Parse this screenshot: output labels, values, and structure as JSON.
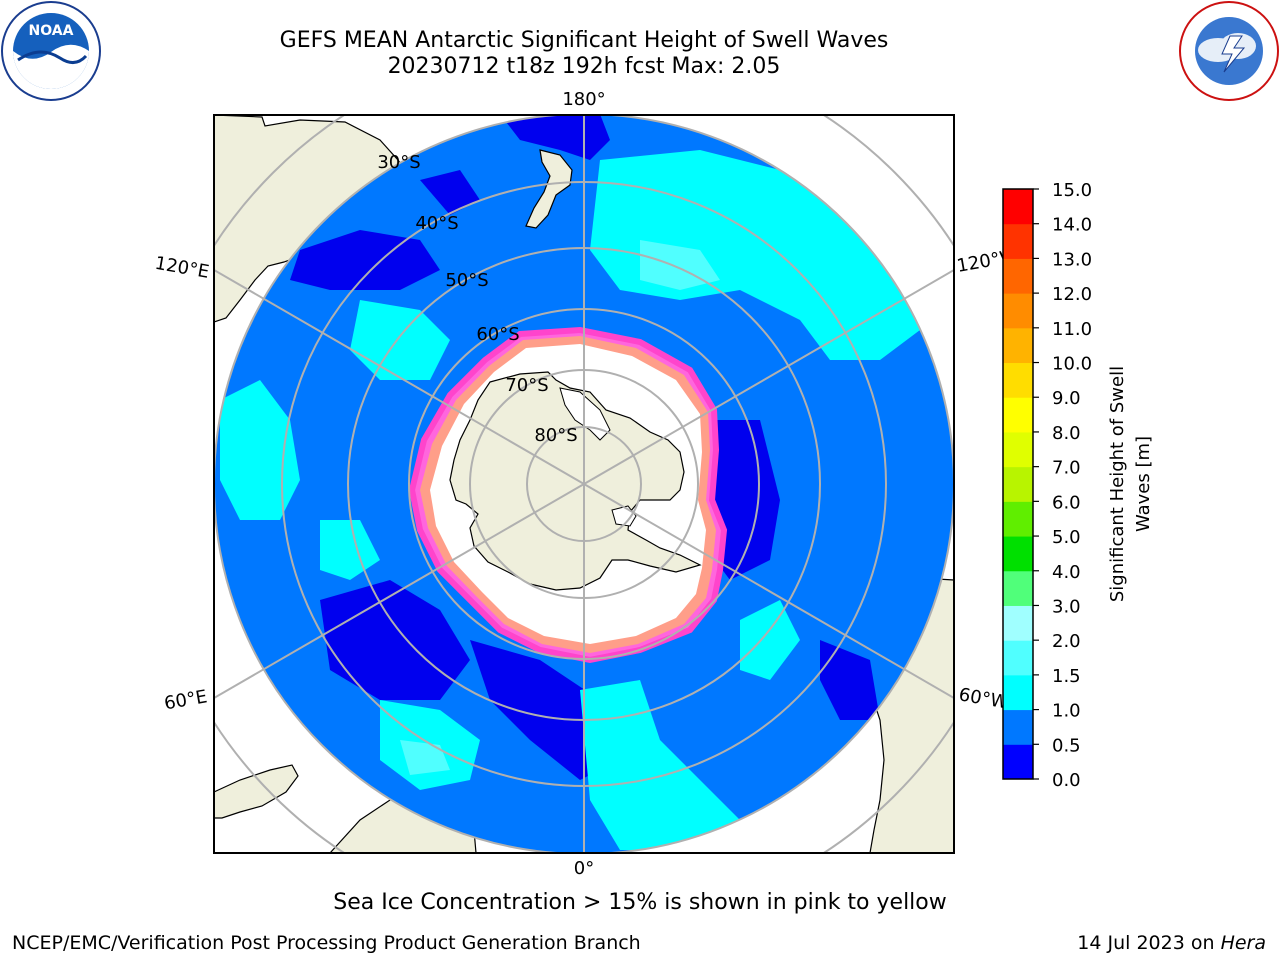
{
  "title": {
    "line1": "GEFS MEAN Antarctic Significant Height of Swell Waves",
    "line2": "20230712 t18z 192h fcst   Max: 2.05"
  },
  "map": {
    "projection": "south-polar-stereographic",
    "longitude_labels": [
      "180°",
      "120°E",
      "120°W",
      "60°E",
      "60°W",
      "0°"
    ],
    "latitude_labels": [
      "30°S",
      "40°S",
      "50°S",
      "60°S",
      "70°S",
      "80°S"
    ]
  },
  "colorbar": {
    "label_line1": "Significant Height of Swell",
    "label_line2": "Waves [m]",
    "ticks": [
      "0.0",
      "0.5",
      "1.0",
      "1.5",
      "2.0",
      "3.0",
      "4.0",
      "5.0",
      "6.0",
      "7.0",
      "8.0",
      "9.0",
      "10.0",
      "11.0",
      "12.0",
      "13.0",
      "14.0",
      "15.0"
    ],
    "colors": [
      "#0000ff",
      "#0078ff",
      "#00ffff",
      "#50ffff",
      "#a0ffff",
      "#50ff7a",
      "#00e000",
      "#60ee00",
      "#b8f400",
      "#e0ff00",
      "#ffff00",
      "#ffdd00",
      "#ffb300",
      "#ff8c00",
      "#ff6600",
      "#ff3300",
      "#ff0000"
    ]
  },
  "colors": {
    "land": "#efefdc",
    "ocean_base": "#0078ff",
    "ocean_deep": "#0000ee",
    "ocean_cyan": "#00ffff",
    "sea_ice_edge": "#ff44cc",
    "grid": "#b0b0b0"
  },
  "note": "Sea Ice Concentration > 15% is shown in pink to yellow",
  "footer": {
    "credit": "NCEP/EMC/Verification Post Processing Product Generation Branch",
    "date": "14 Jul 2023 on",
    "machine": "Hera"
  },
  "logos": {
    "noaa": "NOAA",
    "nws": "NATIONAL WEATHER SERVICE"
  }
}
